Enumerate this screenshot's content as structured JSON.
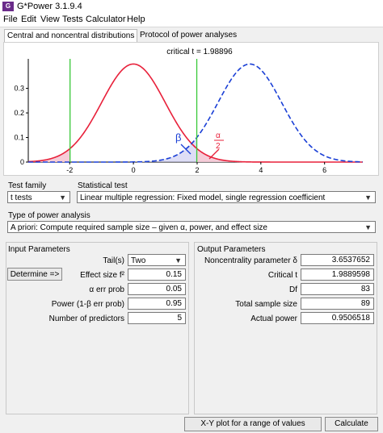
{
  "window": {
    "title": "G*Power 3.1.9.4",
    "icon_text": "G"
  },
  "menu": [
    "File",
    "Edit",
    "View",
    "Tests",
    "Calculator",
    "Help"
  ],
  "tabs": [
    {
      "label": "Central and noncentral distributions",
      "active": true
    },
    {
      "label": "Protocol of power analyses",
      "active": false
    }
  ],
  "plot": {
    "critical_label": "critical t = 1.98896",
    "beta_symbol": "β",
    "alpha_num": "α",
    "alpha_den": "2",
    "y_ticks": [
      "0.3",
      "0.2",
      "0.1",
      "0"
    ],
    "x_ticks": [
      "-2",
      "0",
      "2",
      "4",
      "6"
    ],
    "colors": {
      "central": "#e8203a",
      "noncentral": "#1a3fd6",
      "critical": "#38c838",
      "beta_fill": "#c8c8f0",
      "alpha_fill": "#f4c6d4"
    }
  },
  "test_family": {
    "label": "Test family",
    "value": "t tests"
  },
  "statistical_test": {
    "label": "Statistical test",
    "value": "Linear multiple regression: Fixed model, single regression coefficient"
  },
  "type_of_power": {
    "label": "Type of power analysis",
    "value": "A priori: Compute required sample size – given α, power, and effect size"
  },
  "input": {
    "label": "Input Parameters",
    "tails_label": "Tail(s)",
    "tails_value": "Two",
    "determine_label": "Determine =>",
    "rows": [
      {
        "label": "Effect size f²",
        "value": "0.15"
      },
      {
        "label": "α err prob",
        "value": "0.05"
      },
      {
        "label": "Power (1-β err prob)",
        "value": "0.95"
      },
      {
        "label": "Number of predictors",
        "value": "5"
      }
    ]
  },
  "output": {
    "label": "Output Parameters",
    "rows": [
      {
        "label": "Noncentrality parameter δ",
        "value": "3.6537652"
      },
      {
        "label": "Critical t",
        "value": "1.9889598"
      },
      {
        "label": "Df",
        "value": "83"
      },
      {
        "label": "Total sample size",
        "value": "89"
      },
      {
        "label": "Actual power",
        "value": "0.9506518"
      }
    ]
  },
  "buttons": {
    "xy_plot": "X-Y plot for a range of values",
    "calculate": "Calculate"
  }
}
